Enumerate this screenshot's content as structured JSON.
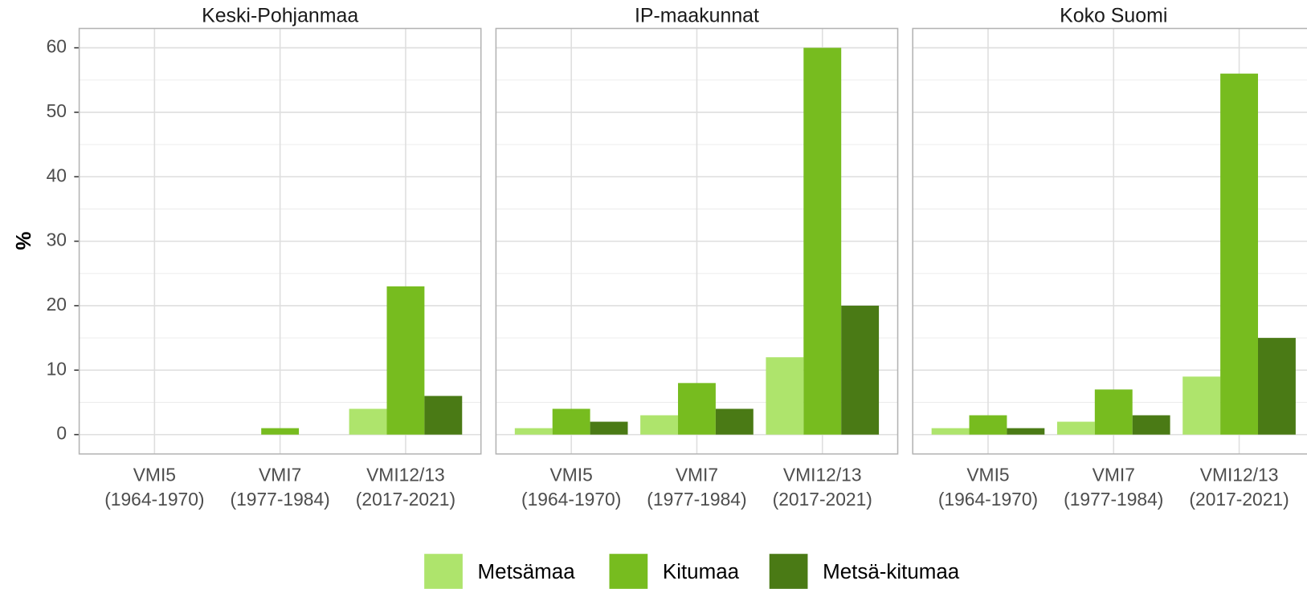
{
  "chart_data": [
    {
      "type": "bar",
      "title": "Keski-Pohjanmaa",
      "ylabel": "%",
      "categories": [
        [
          "VMI5",
          "(1964-1970)"
        ],
        [
          "VMI7",
          "(1977-1984)"
        ],
        [
          "VMI12/13",
          "(2017-2021)"
        ]
      ],
      "series": [
        {
          "name": "Metsämaa",
          "color": "#aee46c",
          "values": [
            null,
            null,
            4
          ]
        },
        {
          "name": "Kitumaa",
          "color": "#77bc1f",
          "values": [
            null,
            1,
            23
          ]
        },
        {
          "name": "Metsä-kitumaa",
          "color": "#4a7a15",
          "values": [
            null,
            null,
            6
          ]
        }
      ],
      "ylim": [
        -3,
        63
      ],
      "yticks": [
        0,
        10,
        20,
        30,
        40,
        50,
        60
      ],
      "minor_yticks": [
        5,
        15,
        25,
        35,
        45,
        55
      ],
      "grid": true
    },
    {
      "type": "bar",
      "title": "IP-maakunnat",
      "categories": [
        [
          "VMI5",
          "(1964-1970)"
        ],
        [
          "VMI7",
          "(1977-1984)"
        ],
        [
          "VMI12/13",
          "(2017-2021)"
        ]
      ],
      "series": [
        {
          "color": "#aee46c",
          "values": [
            1,
            3,
            12
          ]
        },
        {
          "color": "#77bc1f",
          "values": [
            4,
            8,
            60
          ]
        },
        {
          "color": "#4a7a15",
          "values": [
            2,
            4,
            20
          ]
        }
      ],
      "ylim": [
        -3,
        63
      ],
      "yticks": [
        0,
        10,
        20,
        30,
        40,
        50,
        60
      ],
      "minor_yticks": [
        5,
        15,
        25,
        35,
        45,
        55
      ],
      "grid": true
    },
    {
      "type": "bar",
      "title": "Koko Suomi",
      "categories": [
        [
          "VMI5",
          "(1964-1970)"
        ],
        [
          "VMI7",
          "(1977-1984)"
        ],
        [
          "VMI12/13",
          "(2017-2021)"
        ]
      ],
      "series": [
        {
          "color": "#aee46c",
          "values": [
            1,
            2,
            9
          ]
        },
        {
          "color": "#77bc1f",
          "values": [
            3,
            7,
            56
          ]
        },
        {
          "color": "#4a7a15",
          "values": [
            1,
            3,
            15
          ]
        }
      ],
      "ylim": [
        -3,
        63
      ],
      "yticks": [
        0,
        10,
        20,
        30,
        40,
        50,
        60
      ],
      "minor_yticks": [
        5,
        15,
        25,
        35,
        45,
        55
      ],
      "grid": true
    }
  ]
}
